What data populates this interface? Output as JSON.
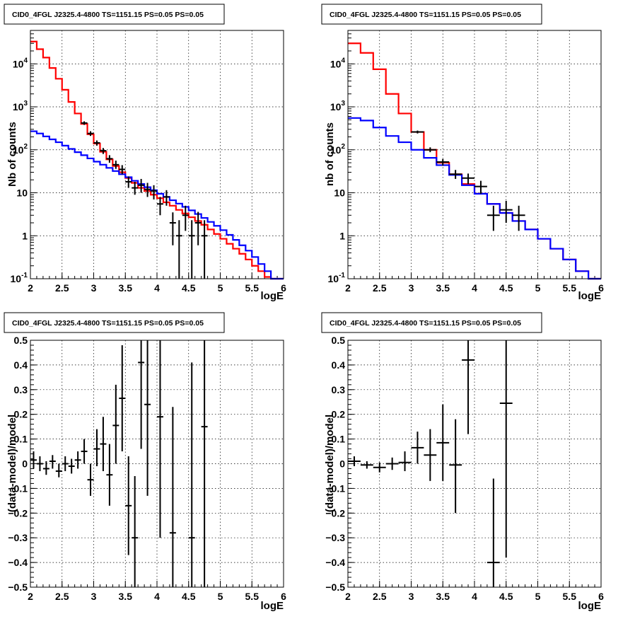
{
  "chart_data": [
    {
      "type": "line",
      "title": "CID0_4FGL J2325.4-4800 TS=1151.15 PS=0.05 PS=0.05",
      "xlabel": "logE",
      "ylabel": "Nb of counts",
      "log_y": true,
      "xlim": [
        2,
        6
      ],
      "ylim": [
        0.1,
        60000
      ],
      "grid": true,
      "x_ticks": [
        "2",
        "2.5",
        "3",
        "3.5",
        "4",
        "4.5",
        "5",
        "5.5",
        "6"
      ],
      "y_ticks": [
        {
          "v": 0.1,
          "base": "10",
          "exp": "-1"
        },
        {
          "v": 1,
          "label": "1"
        },
        {
          "v": 10,
          "label": "10"
        },
        {
          "v": 100,
          "base": "10",
          "exp": "2"
        },
        {
          "v": 1000,
          "base": "10",
          "exp": "3"
        },
        {
          "v": 10000,
          "base": "10",
          "exp": "4"
        }
      ],
      "bin_edges": [
        2.0,
        2.1,
        2.2,
        2.3,
        2.4,
        2.5,
        2.6,
        2.7,
        2.8,
        2.9,
        3.0,
        3.1,
        3.2,
        3.3,
        3.4,
        3.5,
        3.6,
        3.7,
        3.8,
        3.9,
        4.0,
        4.1,
        4.2,
        4.3,
        4.4,
        4.5,
        4.6,
        4.7,
        4.8,
        4.9,
        5.0,
        5.1,
        5.2,
        5.3,
        5.4,
        5.5,
        5.6,
        5.7,
        5.8,
        5.9,
        6.0
      ],
      "series": [
        {
          "color": "#ff0000",
          "style": "step",
          "values": [
            33000,
            22000,
            14000,
            8000,
            4500,
            2500,
            1300,
            700,
            400,
            230,
            140,
            90,
            60,
            42,
            30,
            22,
            17,
            13,
            11,
            9,
            7.5,
            6,
            5,
            4,
            3.3,
            2.7,
            2.2,
            1.8,
            1.4,
            1.1,
            0.85,
            0.65,
            0.5,
            0.38,
            0.28,
            0.2,
            0.15,
            0.11,
            0.1,
            0.1
          ]
        },
        {
          "color": "#0000ff",
          "style": "step",
          "values": [
            270,
            240,
            205,
            175,
            150,
            125,
            105,
            88,
            75,
            63,
            53,
            45,
            38,
            32,
            27,
            23,
            19,
            16,
            13.5,
            11.5,
            9.5,
            8,
            6.7,
            5.6,
            4.7,
            3.9,
            3.2,
            2.6,
            2.1,
            1.7,
            1.35,
            1.05,
            0.8,
            0.6,
            0.45,
            0.32,
            0.22,
            0.15,
            0.1,
            0.1
          ]
        },
        {
          "color": "#000000",
          "style": "errorbar",
          "points": [
            {
              "x": 2.85,
              "y": 420,
              "lo": 380,
              "hi": 460,
              "xerr": 0.05
            },
            {
              "x": 2.95,
              "y": 240,
              "lo": 210,
              "hi": 270,
              "xerr": 0.05
            },
            {
              "x": 3.05,
              "y": 145,
              "lo": 125,
              "hi": 165,
              "xerr": 0.05
            },
            {
              "x": 3.15,
              "y": 95,
              "lo": 80,
              "hi": 110,
              "xerr": 0.05
            },
            {
              "x": 3.25,
              "y": 62,
              "lo": 50,
              "hi": 75,
              "xerr": 0.05
            },
            {
              "x": 3.35,
              "y": 45,
              "lo": 36,
              "hi": 56,
              "xerr": 0.05
            },
            {
              "x": 3.45,
              "y": 35,
              "lo": 27,
              "hi": 44,
              "xerr": 0.05
            },
            {
              "x": 3.55,
              "y": 18,
              "lo": 13,
              "hi": 24,
              "xerr": 0.05
            },
            {
              "x": 3.65,
              "y": 13,
              "lo": 9,
              "hi": 18,
              "xerr": 0.05
            },
            {
              "x": 3.75,
              "y": 15,
              "lo": 10,
              "hi": 21,
              "xerr": 0.05
            },
            {
              "x": 3.85,
              "y": 12,
              "lo": 8,
              "hi": 17,
              "xerr": 0.05
            },
            {
              "x": 3.95,
              "y": 11,
              "lo": 7,
              "hi": 15,
              "xerr": 0.05
            },
            {
              "x": 4.05,
              "y": 5.5,
              "lo": 3,
              "hi": 8,
              "xerr": 0.05
            },
            {
              "x": 4.15,
              "y": 8,
              "lo": 5,
              "hi": 11.5,
              "xerr": 0.05
            },
            {
              "x": 4.25,
              "y": 2,
              "lo": 0.6,
              "hi": 3.5,
              "xerr": 0.05
            },
            {
              "x": 4.35,
              "y": 1,
              "lo": 0.1,
              "hi": 2.3,
              "xerr": 0.05
            },
            {
              "x": 4.45,
              "y": 3,
              "lo": 1.3,
              "hi": 5,
              "xerr": 0.05
            },
            {
              "x": 4.55,
              "y": 1,
              "lo": 0.1,
              "hi": 2.3,
              "xerr": 0.05
            },
            {
              "x": 4.65,
              "y": 2,
              "lo": 0.6,
              "hi": 3.6,
              "xerr": 0.05
            },
            {
              "x": 4.75,
              "y": 1,
              "lo": 0.1,
              "hi": 2.3,
              "xerr": 0.05
            }
          ]
        }
      ]
    },
    {
      "type": "line",
      "title": "CID0_4FGL J2325.4-4800 TS=1151.15 PS=0.05 PS=0.05",
      "xlabel": "logE",
      "ylabel": "nb of counts",
      "log_y": true,
      "xlim": [
        2,
        6
      ],
      "ylim": [
        0.1,
        60000
      ],
      "grid": true,
      "x_ticks": [
        "2",
        "2.5",
        "3",
        "3.5",
        "4",
        "4.5",
        "5",
        "5.5",
        "6"
      ],
      "y_ticks": [
        {
          "v": 0.1,
          "base": "10",
          "exp": "-1"
        },
        {
          "v": 1,
          "label": "1"
        },
        {
          "v": 10,
          "label": "10"
        },
        {
          "v": 100,
          "base": "10",
          "exp": "2"
        },
        {
          "v": 1000,
          "base": "10",
          "exp": "3"
        },
        {
          "v": 10000,
          "base": "10",
          "exp": "4"
        }
      ],
      "bin_edges": [
        2.0,
        2.2,
        2.4,
        2.6,
        2.8,
        3.0,
        3.2,
        3.4,
        3.6,
        3.8,
        4.0,
        4.2,
        4.4,
        4.6,
        4.8,
        5.0,
        5.2,
        5.4,
        5.6,
        5.8,
        6.0
      ],
      "series": [
        {
          "color": "#ff0000",
          "style": "step",
          "values": [
            30000,
            18000,
            7500,
            2000,
            700,
            260,
            100,
            50,
            27,
            16,
            9.5,
            5.5,
            3.4,
            2.2,
            1.4,
            0.85,
            0.5,
            0.28,
            0.15,
            0.1
          ]
        },
        {
          "color": "#0000ff",
          "style": "step",
          "values": [
            550,
            480,
            330,
            210,
            150,
            100,
            65,
            44,
            26,
            15,
            9.5,
            5.5,
            3.4,
            2.2,
            1.4,
            0.85,
            0.5,
            0.28,
            0.15,
            0.1
          ]
        },
        {
          "color": "#000000",
          "style": "errorbar",
          "points": [
            {
              "x": 3.1,
              "y": 260,
              "lo": 240,
              "hi": 280,
              "xerr": 0.1
            },
            {
              "x": 3.3,
              "y": 100,
              "lo": 88,
              "hi": 114,
              "xerr": 0.1
            },
            {
              "x": 3.5,
              "y": 52,
              "lo": 43,
              "hi": 61,
              "xerr": 0.1
            },
            {
              "x": 3.7,
              "y": 27,
              "lo": 21,
              "hi": 34,
              "xerr": 0.1
            },
            {
              "x": 3.9,
              "y": 22,
              "lo": 16,
              "hi": 28,
              "xerr": 0.1
            },
            {
              "x": 4.1,
              "y": 14,
              "lo": 9.5,
              "hi": 19,
              "xerr": 0.1
            },
            {
              "x": 4.3,
              "y": 3,
              "lo": 1.3,
              "hi": 5,
              "xerr": 0.1
            },
            {
              "x": 4.5,
              "y": 4,
              "lo": 2,
              "hi": 6.5,
              "xerr": 0.1
            },
            {
              "x": 4.7,
              "y": 3,
              "lo": 1.3,
              "hi": 5,
              "xerr": 0.1
            }
          ]
        }
      ]
    },
    {
      "type": "scatter",
      "title": "CID0_4FGL J2325.4-4800 TS=1151.15 PS=0.05 PS=0.05",
      "xlabel": "logE",
      "ylabel": "(data-model)/model",
      "log_y": false,
      "xlim": [
        2,
        6
      ],
      "ylim": [
        -0.5,
        0.5
      ],
      "grid": true,
      "x_ticks": [
        "2",
        "2.5",
        "3",
        "3.5",
        "4",
        "4.5",
        "5",
        "5.5",
        "6"
      ],
      "y_ticks": [
        {
          "v": -0.5,
          "label": "−0.5"
        },
        {
          "v": -0.4,
          "label": "−0.4"
        },
        {
          "v": -0.3,
          "label": "−0.3"
        },
        {
          "v": -0.2,
          "label": "−0.2"
        },
        {
          "v": -0.1,
          "label": "−0.1"
        },
        {
          "v": 0,
          "label": "0"
        },
        {
          "v": 0.1,
          "label": "0.1"
        },
        {
          "v": 0.2,
          "label": "0.2"
        },
        {
          "v": 0.3,
          "label": "0.3"
        },
        {
          "v": 0.4,
          "label": "0.4"
        },
        {
          "v": 0.5,
          "label": "0.5"
        }
      ],
      "series": [
        {
          "color": "#000000",
          "style": "errorbar",
          "points": [
            {
              "x": 2.05,
              "y": 0.015,
              "lo": -0.02,
              "hi": 0.05,
              "xerr": 0.05
            },
            {
              "x": 2.15,
              "y": 0.0,
              "lo": -0.03,
              "hi": 0.03,
              "xerr": 0.05
            },
            {
              "x": 2.25,
              "y": -0.02,
              "lo": -0.045,
              "hi": 0.01,
              "xerr": 0.05
            },
            {
              "x": 2.35,
              "y": 0.01,
              "lo": -0.02,
              "hi": 0.035,
              "xerr": 0.05
            },
            {
              "x": 2.45,
              "y": -0.03,
              "lo": -0.055,
              "hi": 0.0,
              "xerr": 0.05
            },
            {
              "x": 2.55,
              "y": 0.0,
              "lo": -0.03,
              "hi": 0.03,
              "xerr": 0.05
            },
            {
              "x": 2.65,
              "y": -0.01,
              "lo": -0.04,
              "hi": 0.02,
              "xerr": 0.05
            },
            {
              "x": 2.75,
              "y": 0.015,
              "lo": -0.02,
              "hi": 0.05,
              "xerr": 0.05
            },
            {
              "x": 2.85,
              "y": 0.05,
              "lo": 0.0,
              "hi": 0.1,
              "xerr": 0.05
            },
            {
              "x": 2.95,
              "y": -0.065,
              "lo": -0.13,
              "hi": 0.0,
              "xerr": 0.05
            },
            {
              "x": 3.05,
              "y": 0.06,
              "lo": -0.01,
              "hi": 0.14,
              "xerr": 0.05
            },
            {
              "x": 3.15,
              "y": 0.08,
              "lo": -0.03,
              "hi": 0.19,
              "xerr": 0.05
            },
            {
              "x": 3.25,
              "y": -0.045,
              "lo": -0.17,
              "hi": 0.08,
              "xerr": 0.05
            },
            {
              "x": 3.35,
              "y": 0.155,
              "lo": 0.0,
              "hi": 0.32,
              "xerr": 0.05
            },
            {
              "x": 3.45,
              "y": 0.265,
              "lo": 0.05,
              "hi": 0.48,
              "xerr": 0.05
            },
            {
              "x": 3.55,
              "y": -0.17,
              "lo": -0.37,
              "hi": 0.03,
              "xerr": 0.05
            },
            {
              "x": 3.65,
              "y": -0.3,
              "lo": -0.5,
              "hi": -0.05,
              "xerr": 0.05
            },
            {
              "x": 3.75,
              "y": 0.41,
              "lo": 0.06,
              "hi": 0.5,
              "xerr": 0.05
            },
            {
              "x": 3.85,
              "y": 0.24,
              "lo": -0.13,
              "hi": 0.5,
              "xerr": 0.05
            },
            {
              "x": 4.05,
              "y": 0.19,
              "lo": -0.3,
              "hi": 0.5,
              "xerr": 0.05
            },
            {
              "x": 4.25,
              "y": -0.28,
              "lo": -0.5,
              "hi": 0.23,
              "xerr": 0.05
            },
            {
              "x": 4.55,
              "y": -0.3,
              "lo": -0.5,
              "hi": 0.41,
              "xerr": 0.05
            },
            {
              "x": 4.75,
              "y": 0.15,
              "lo": -0.5,
              "hi": 0.5,
              "xerr": 0.05
            }
          ]
        }
      ]
    },
    {
      "type": "scatter",
      "title": "CID0_4FGL J2325.4-4800 TS=1151.15 PS=0.05 PS=0.05",
      "xlabel": "logE",
      "ylabel": "(data-model)/model",
      "log_y": false,
      "xlim": [
        2,
        6
      ],
      "ylim": [
        -0.5,
        0.5
      ],
      "grid": true,
      "x_ticks": [
        "2",
        "2.5",
        "3",
        "3.5",
        "4",
        "4.5",
        "5",
        "5.5",
        "6"
      ],
      "y_ticks": [
        {
          "v": -0.5,
          "label": "−0.5"
        },
        {
          "v": -0.4,
          "label": "−0.4"
        },
        {
          "v": -0.3,
          "label": "−0.3"
        },
        {
          "v": -0.2,
          "label": "−0.2"
        },
        {
          "v": -0.1,
          "label": "−0.1"
        },
        {
          "v": 0,
          "label": "0"
        },
        {
          "v": 0.1,
          "label": "0.1"
        },
        {
          "v": 0.2,
          "label": "0.2"
        },
        {
          "v": 0.3,
          "label": "0.3"
        },
        {
          "v": 0.4,
          "label": "0.4"
        },
        {
          "v": 0.5,
          "label": "0.5"
        }
      ],
      "series": [
        {
          "color": "#000000",
          "style": "errorbar",
          "points": [
            {
              "x": 2.1,
              "y": 0.01,
              "lo": -0.01,
              "hi": 0.03,
              "xerr": 0.1
            },
            {
              "x": 2.3,
              "y": -0.005,
              "lo": -0.02,
              "hi": 0.01,
              "xerr": 0.1
            },
            {
              "x": 2.5,
              "y": -0.015,
              "lo": -0.035,
              "hi": 0.005,
              "xerr": 0.1
            },
            {
              "x": 2.7,
              "y": 0.0,
              "lo": -0.025,
              "hi": 0.025,
              "xerr": 0.1
            },
            {
              "x": 2.9,
              "y": 0.005,
              "lo": -0.03,
              "hi": 0.05,
              "xerr": 0.1
            },
            {
              "x": 3.1,
              "y": 0.065,
              "lo": 0.0,
              "hi": 0.13,
              "xerr": 0.1
            },
            {
              "x": 3.3,
              "y": 0.035,
              "lo": -0.07,
              "hi": 0.14,
              "xerr": 0.1
            },
            {
              "x": 3.5,
              "y": 0.085,
              "lo": -0.07,
              "hi": 0.24,
              "xerr": 0.1
            },
            {
              "x": 3.7,
              "y": -0.005,
              "lo": -0.2,
              "hi": 0.18,
              "xerr": 0.1
            },
            {
              "x": 3.9,
              "y": 0.42,
              "lo": 0.12,
              "hi": 0.5,
              "xerr": 0.1
            },
            {
              "x": 4.3,
              "y": -0.4,
              "lo": -0.5,
              "hi": -0.06,
              "xerr": 0.1
            },
            {
              "x": 4.5,
              "y": 0.245,
              "lo": -0.38,
              "hi": 0.5,
              "xerr": 0.1
            }
          ]
        }
      ]
    }
  ]
}
